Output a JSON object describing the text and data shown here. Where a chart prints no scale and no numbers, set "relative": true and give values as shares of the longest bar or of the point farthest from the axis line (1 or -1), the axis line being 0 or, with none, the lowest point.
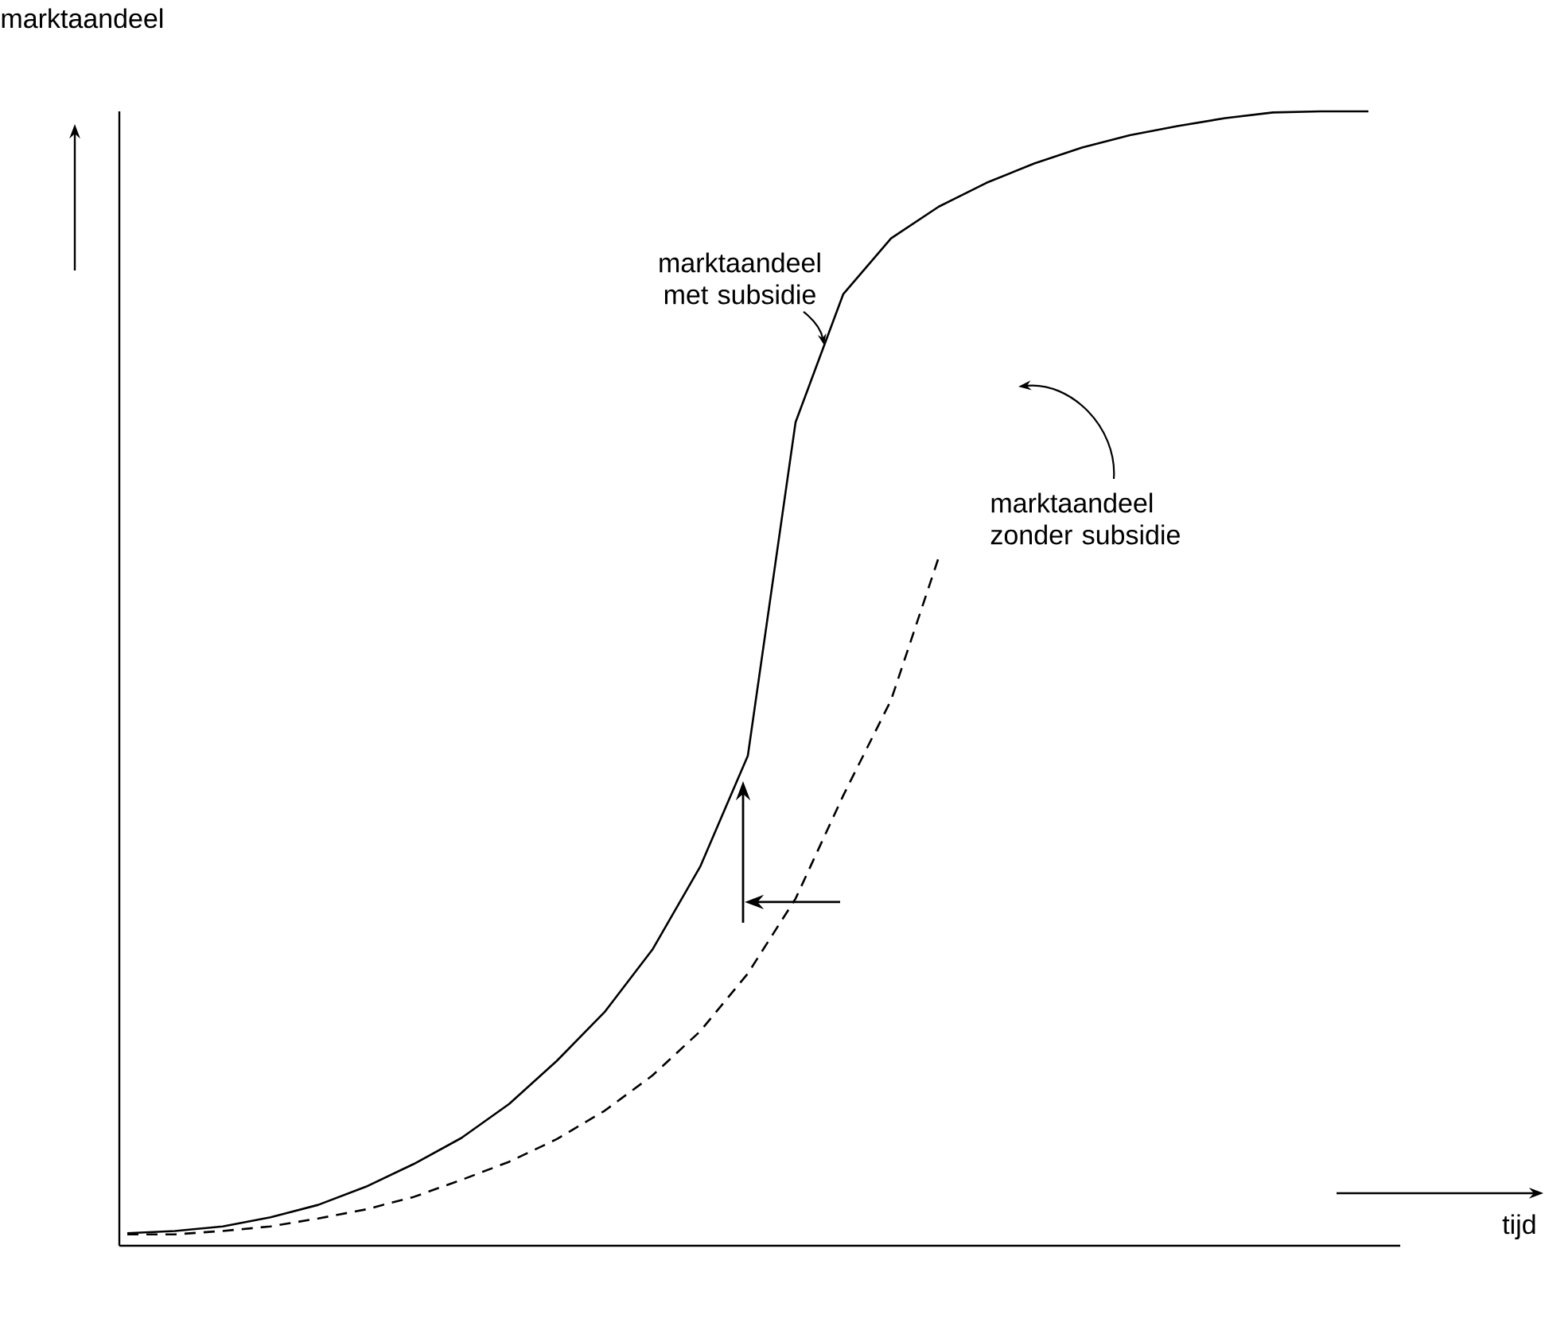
{
  "chart_data": {
    "type": "line",
    "xlabel": "tijd",
    "ylabel": "marktaandeel",
    "relative": true,
    "categories": [
      null,
      null,
      null,
      null,
      null,
      null,
      null,
      null,
      null,
      null,
      null,
      null,
      null,
      null,
      null,
      null,
      null,
      null,
      null,
      null,
      null,
      null,
      null,
      null,
      null,
      null,
      null
    ],
    "series": [
      {
        "name": "marktaandeel met subsidie",
        "color": "#000000",
        "line_style": "solid",
        "values": [
          0.011,
          0.013,
          0.017,
          0.025,
          0.036,
          0.052,
          0.072,
          0.095,
          0.125,
          0.163,
          0.206,
          0.261,
          0.334,
          0.432,
          0.726,
          0.839,
          0.888,
          0.916,
          0.937,
          0.954,
          0.968,
          0.979,
          0.987,
          0.994,
          0.999,
          1,
          1
        ]
      },
      {
        "name": "marktaandeel zonder subsidie",
        "color": "#000000",
        "line_style": "dashed",
        "values": [
          0.01,
          0.01,
          0.013,
          0.017,
          0.024,
          0.032,
          0.043,
          0.058,
          0.074,
          0.094,
          0.119,
          0.15,
          0.189,
          0.24,
          0.306,
          0.397,
          0.481,
          0.607,
          null,
          null,
          null,
          null,
          null,
          null,
          null,
          null,
          null
        ]
      }
    ]
  }
}
